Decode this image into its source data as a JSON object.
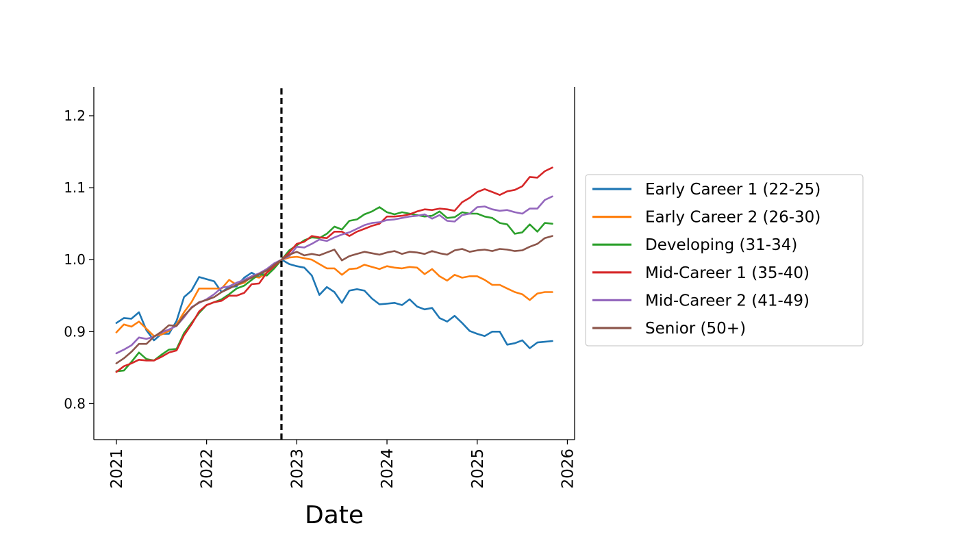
{
  "chart_data": {
    "type": "line",
    "title": "",
    "xlabel": "Date",
    "ylabel": "",
    "xlim": [
      2020.75,
      2026.08
    ],
    "ylim": [
      0.75,
      1.24
    ],
    "x_ticks": [
      2021,
      2022,
      2023,
      2024,
      2025,
      2026
    ],
    "x_tick_labels": [
      "2021",
      "2022",
      "2023",
      "2024",
      "2025",
      "2026"
    ],
    "y_ticks": [
      0.8,
      0.9,
      1.0,
      1.1,
      1.2
    ],
    "y_tick_labels": [
      "0.8",
      "0.9",
      "1.0",
      "1.1",
      "1.2"
    ],
    "vline": {
      "x": 2022.83,
      "style": "dashed",
      "color": "#000000"
    },
    "grid": false,
    "legend_position": "right, outside the plot",
    "series_x": [
      2021.0,
      2021.083,
      2021.167,
      2021.25,
      2021.333,
      2021.417,
      2021.5,
      2021.583,
      2021.667,
      2021.75,
      2021.833,
      2021.917,
      2022.0,
      2022.083,
      2022.167,
      2022.25,
      2022.333,
      2022.417,
      2022.5,
      2022.583,
      2022.667,
      2022.75,
      2022.833,
      2022.917,
      2023.0,
      2023.083,
      2023.167,
      2023.25,
      2023.333,
      2023.417,
      2023.5,
      2023.583,
      2023.667,
      2023.75,
      2023.833,
      2023.917,
      2024.0,
      2024.083,
      2024.167,
      2024.25,
      2024.333,
      2024.417,
      2024.5,
      2024.583,
      2024.667,
      2024.75,
      2024.833,
      2024.917,
      2025.0,
      2025.083,
      2025.167,
      2025.25,
      2025.333,
      2025.417,
      2025.5,
      2025.583,
      2025.667,
      2025.75,
      2025.833
    ],
    "series": [
      {
        "name": "Early Career 1 (22-25)",
        "color": "#1f77b4",
        "values": [
          0.912,
          0.919,
          0.918,
          0.927,
          0.902,
          0.888,
          0.897,
          0.897,
          0.915,
          0.948,
          0.957,
          0.976,
          0.973,
          0.97,
          0.955,
          0.962,
          0.963,
          0.975,
          0.982,
          0.976,
          0.987,
          0.994,
          1.0,
          0.994,
          0.991,
          0.989,
          0.978,
          0.951,
          0.962,
          0.955,
          0.94,
          0.957,
          0.959,
          0.957,
          0.946,
          0.938,
          0.939,
          0.94,
          0.937,
          0.945,
          0.935,
          0.931,
          0.933,
          0.919,
          0.914,
          0.922,
          0.912,
          0.901,
          0.897,
          0.894,
          0.9,
          0.9,
          0.882,
          0.884,
          0.888,
          0.877,
          0.885,
          0.886,
          0.887
        ]
      },
      {
        "name": "Early Career 2 (26-30)",
        "color": "#ff7f0e",
        "values": [
          0.899,
          0.91,
          0.907,
          0.914,
          0.904,
          0.894,
          0.896,
          0.901,
          0.91,
          0.927,
          0.941,
          0.96,
          0.96,
          0.96,
          0.96,
          0.972,
          0.965,
          0.968,
          0.977,
          0.975,
          0.982,
          0.99,
          1.0,
          1.003,
          1.004,
          1.002,
          1.0,
          0.994,
          0.988,
          0.988,
          0.979,
          0.987,
          0.988,
          0.993,
          0.99,
          0.987,
          0.991,
          0.989,
          0.988,
          0.99,
          0.989,
          0.98,
          0.987,
          0.977,
          0.971,
          0.979,
          0.975,
          0.977,
          0.977,
          0.972,
          0.965,
          0.965,
          0.96,
          0.955,
          0.952,
          0.944,
          0.953,
          0.955,
          0.955
        ]
      },
      {
        "name": "Developing (31-34)",
        "color": "#2ca02c",
        "values": [
          0.845,
          0.846,
          0.858,
          0.871,
          0.862,
          0.86,
          0.868,
          0.875,
          0.876,
          0.898,
          0.912,
          0.926,
          0.937,
          0.941,
          0.945,
          0.952,
          0.96,
          0.964,
          0.972,
          0.98,
          0.978,
          0.988,
          1.0,
          1.013,
          1.02,
          1.027,
          1.031,
          1.03,
          1.036,
          1.046,
          1.042,
          1.054,
          1.056,
          1.063,
          1.067,
          1.073,
          1.066,
          1.063,
          1.066,
          1.064,
          1.062,
          1.06,
          1.061,
          1.067,
          1.058,
          1.059,
          1.066,
          1.064,
          1.064,
          1.06,
          1.058,
          1.051,
          1.049,
          1.036,
          1.038,
          1.049,
          1.039,
          1.051,
          1.05
        ]
      },
      {
        "name": "Mid-Career 1 (35-40)",
        "color": "#d62728",
        "values": [
          0.844,
          0.852,
          0.856,
          0.861,
          0.86,
          0.86,
          0.865,
          0.871,
          0.874,
          0.895,
          0.91,
          0.928,
          0.937,
          0.941,
          0.943,
          0.95,
          0.95,
          0.954,
          0.966,
          0.967,
          0.982,
          0.991,
          1.0,
          1.01,
          1.022,
          1.025,
          1.033,
          1.031,
          1.03,
          1.039,
          1.039,
          1.033,
          1.039,
          1.043,
          1.047,
          1.05,
          1.06,
          1.06,
          1.061,
          1.063,
          1.067,
          1.07,
          1.069,
          1.071,
          1.07,
          1.068,
          1.08,
          1.086,
          1.094,
          1.098,
          1.094,
          1.09,
          1.095,
          1.097,
          1.102,
          1.115,
          1.114,
          1.123,
          1.128
        ]
      },
      {
        "name": "Mid-Career 2 (41-49)",
        "color": "#9467bd",
        "values": [
          0.87,
          0.875,
          0.881,
          0.892,
          0.89,
          0.893,
          0.899,
          0.903,
          0.908,
          0.92,
          0.934,
          0.94,
          0.945,
          0.952,
          0.961,
          0.963,
          0.968,
          0.972,
          0.977,
          0.981,
          0.987,
          0.995,
          1.0,
          1.005,
          1.018,
          1.017,
          1.022,
          1.028,
          1.026,
          1.031,
          1.035,
          1.038,
          1.043,
          1.048,
          1.051,
          1.052,
          1.055,
          1.056,
          1.058,
          1.06,
          1.061,
          1.063,
          1.057,
          1.062,
          1.054,
          1.053,
          1.062,
          1.064,
          1.073,
          1.074,
          1.07,
          1.068,
          1.069,
          1.066,
          1.064,
          1.071,
          1.071,
          1.083,
          1.088
        ]
      },
      {
        "name": "Senior (50+)",
        "color": "#8c564b",
        "values": [
          0.856,
          0.863,
          0.872,
          0.883,
          0.883,
          0.893,
          0.9,
          0.909,
          0.908,
          0.922,
          0.933,
          0.941,
          0.944,
          0.948,
          0.955,
          0.96,
          0.965,
          0.97,
          0.975,
          0.98,
          0.985,
          0.993,
          1.0,
          1.007,
          1.011,
          1.006,
          1.008,
          1.006,
          1.01,
          1.014,
          0.999,
          1.005,
          1.008,
          1.011,
          1.009,
          1.007,
          1.01,
          1.012,
          1.008,
          1.011,
          1.01,
          1.008,
          1.012,
          1.009,
          1.007,
          1.013,
          1.015,
          1.011,
          1.013,
          1.014,
          1.012,
          1.015,
          1.014,
          1.012,
          1.013,
          1.018,
          1.022,
          1.03,
          1.033
        ]
      }
    ]
  }
}
